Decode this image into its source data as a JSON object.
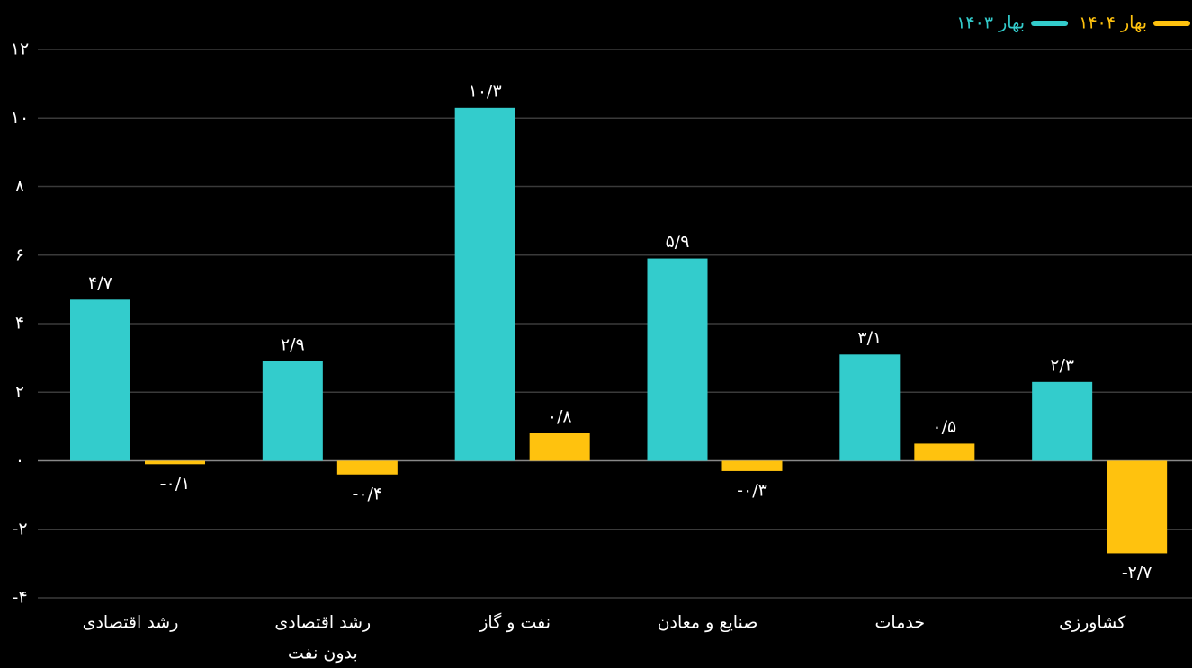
{
  "chart_data": {
    "type": "bar",
    "categories": [
      "رشد اقتصادی",
      [
        "رشد اقتصادی",
        "بدون نفت"
      ],
      "نفت و گاز",
      "صنایع و معادن",
      "خدمات",
      "کشاورزی"
    ],
    "series": [
      {
        "name": "بهار ۱۴۰۳",
        "color": "#33cccc",
        "values": [
          4.7,
          2.9,
          10.3,
          5.9,
          3.1,
          2.3
        ],
        "value_labels": [
          "۴/۷",
          "۲/۹",
          "۱۰/۳",
          "۵/۹",
          "۳/۱",
          "۲/۳"
        ]
      },
      {
        "name": "بهار ۱۴۰۴",
        "color": "#ffc20e",
        "values": [
          -0.1,
          -0.4,
          0.8,
          -0.3,
          0.5,
          -2.7
        ],
        "value_labels": [
          "-۰/۱",
          "-۰/۴",
          "۰/۸",
          "-۰/۳",
          "۰/۵",
          "-۲/۷"
        ]
      }
    ],
    "ylim": [
      -4,
      12
    ],
    "yticks": [
      {
        "value": -4,
        "label": "-۴"
      },
      {
        "value": -2,
        "label": "-۲"
      },
      {
        "value": 0,
        "label": "۰"
      },
      {
        "value": 2,
        "label": "۲"
      },
      {
        "value": 4,
        "label": "۴"
      },
      {
        "value": 6,
        "label": "۶"
      },
      {
        "value": 8,
        "label": "۸"
      },
      {
        "value": 10,
        "label": "۱۰"
      },
      {
        "value": 12,
        "label": "۱۲"
      }
    ],
    "grid": true,
    "legend": "top-right"
  }
}
